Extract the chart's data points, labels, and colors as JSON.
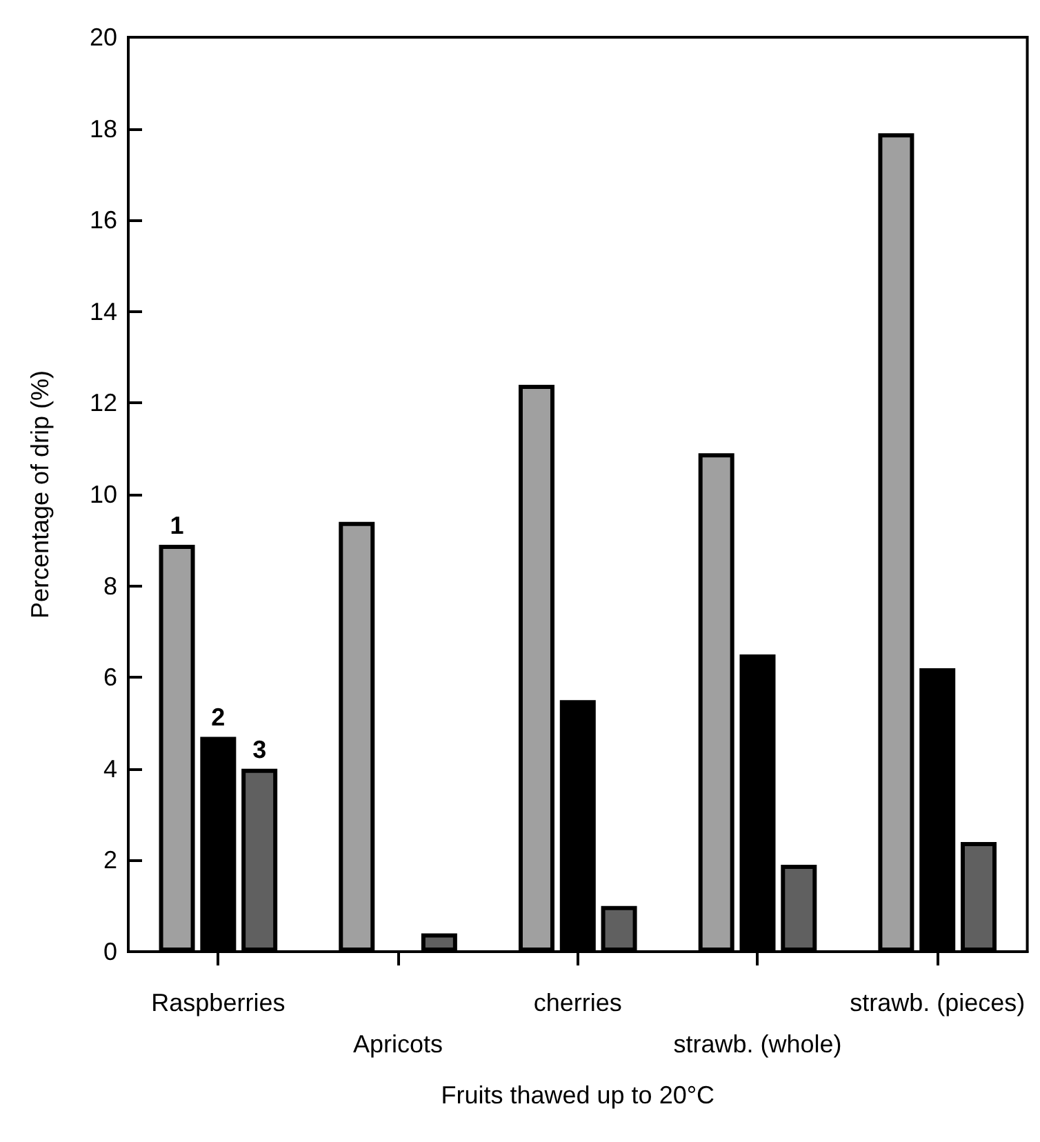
{
  "chart_data": {
    "type": "bar",
    "xlabel": "Fruits thawed up to 20°C",
    "ylabel": "Percentage of drip (%)",
    "categories": [
      "Raspberries",
      "Apricots",
      "cherries",
      "strawb. (whole)",
      "strawb. (pieces)"
    ],
    "series": [
      {
        "name": "1",
        "color": "#a0a0a0",
        "values": [
          8.9,
          9.4,
          12.4,
          10.9,
          17.9
        ]
      },
      {
        "name": "2",
        "color": "#000000",
        "values": [
          4.7,
          null,
          5.5,
          6.5,
          6.2
        ]
      },
      {
        "name": "3",
        "color": "#606060",
        "values": [
          4.0,
          0.4,
          1.0,
          1.9,
          2.4
        ]
      }
    ],
    "ylim": [
      0,
      20
    ],
    "yticks": [
      0,
      2,
      4,
      6,
      8,
      10,
      12,
      14,
      16,
      18,
      20
    ],
    "grid": false,
    "legend": false
  }
}
